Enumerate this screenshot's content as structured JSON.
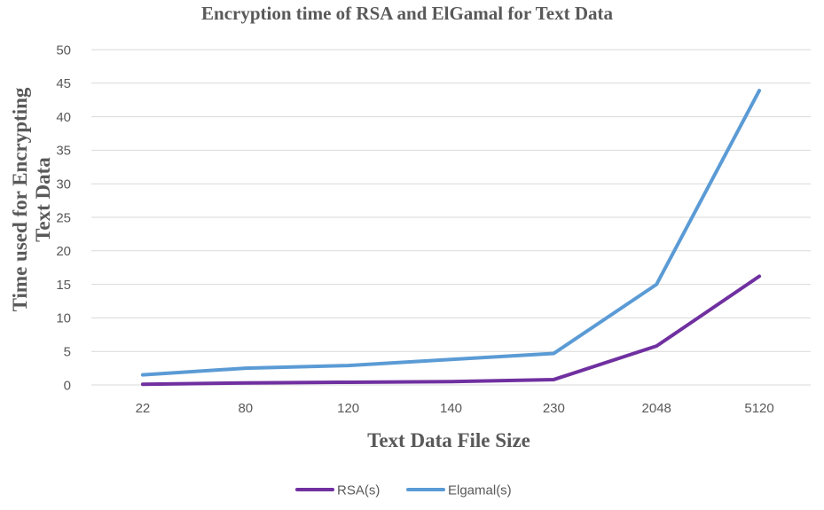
{
  "chart_data": {
    "type": "line",
    "title": "Encryption time of RSA and ElGamal for Text Data",
    "xlabel": "Text Data File Size",
    "ylabel_line1": "Time used for Encrypting",
    "ylabel_line2": "Text Data",
    "categories": [
      "22",
      "80",
      "120",
      "140",
      "230",
      "2048",
      "5120"
    ],
    "ylim": [
      0,
      50
    ],
    "yticks": [
      0,
      5,
      10,
      15,
      20,
      25,
      30,
      35,
      40,
      45,
      50
    ],
    "grid": true,
    "legend_position": "bottom",
    "series": [
      {
        "name": "RSA(s)",
        "color": "#7030a0",
        "values": [
          0.1,
          0.3,
          0.4,
          0.5,
          0.8,
          5.8,
          16.2
        ]
      },
      {
        "name": "Elgamal(s)",
        "color": "#5b9bd5",
        "values": [
          1.5,
          2.5,
          2.9,
          3.8,
          4.7,
          15.0,
          43.9
        ]
      }
    ]
  }
}
